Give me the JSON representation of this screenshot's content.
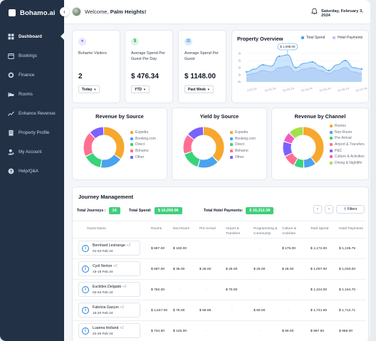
{
  "app": {
    "name": "Bohamo.ai"
  },
  "sidebar": {
    "collapse_icon": "chevron-left-icon",
    "items": [
      {
        "label": "Dashboard",
        "icon": "grid-icon",
        "active": true
      },
      {
        "label": "Bookings",
        "icon": "calendar-icon",
        "active": false
      },
      {
        "label": "Finance",
        "icon": "coin-icon",
        "active": false
      },
      {
        "label": "Rooms",
        "icon": "bed-icon",
        "active": false
      },
      {
        "label": "Enhance Revenue",
        "icon": "chart-up-icon",
        "active": false
      },
      {
        "label": "Property Profile",
        "icon": "building-icon",
        "active": false
      },
      {
        "label": "My Account",
        "icon": "user-cog-icon",
        "active": false
      },
      {
        "label": "Help/Q&A",
        "icon": "help-icon",
        "active": false
      }
    ]
  },
  "header": {
    "welcome_prefix": "Welcome,",
    "user_name": "Palm Heights!",
    "date": "Saturday, February 3, 2024"
  },
  "stats": [
    {
      "label": "Bohamo Visitors",
      "value": "2",
      "filter": "Today",
      "icon": "users-icon",
      "icon_color": "#7b61ff",
      "icon_bg": "#ebe7ff"
    },
    {
      "label": "Average Spend Per Guest Per Day",
      "value": "$ 476.34",
      "filter": "YTD",
      "icon": "money-icon",
      "icon_color": "#1f9d55",
      "icon_bg": "#dcf5e6"
    },
    {
      "label": "Average Spend Per Guest",
      "value": "$ 1148.00",
      "filter": "Past Week",
      "icon": "wallet-icon",
      "icon_color": "#2b7fd8",
      "icon_bg": "#dcebfb"
    }
  ],
  "overview": {
    "title": "Property Overview",
    "legend": [
      {
        "name": "Total Spend",
        "color": "#4aa3f0"
      },
      {
        "name": "Hotel Payments",
        "color": "#b8c7f5"
      }
    ],
    "tooltip": "$ 1,098.00"
  },
  "chart_data": [
    {
      "type": "area",
      "title": "Property Overview",
      "y_ticks": [
        "1k",
        "1k",
        "1k",
        "1k",
        "0k"
      ],
      "x_ticks": [
        "2-01-24",
        "02-02-24",
        "02-03-24",
        "02-04-24",
        "02-05-24",
        "02-06-24",
        "02-07-24"
      ],
      "series": [
        {
          "name": "Total Spend",
          "values": [
            0.35,
            0.45,
            0.6,
            0.55,
            0.9,
            0.95,
            0.5,
            0.65,
            0.7,
            0.55,
            0.4,
            0.6,
            0.75,
            0.5,
            0.45
          ]
        },
        {
          "name": "Hotel Payments",
          "values": [
            0.25,
            0.3,
            0.4,
            0.35,
            0.5,
            0.55,
            0.35,
            0.45,
            0.5,
            0.4,
            0.3,
            0.4,
            0.5,
            0.35,
            0.3
          ]
        }
      ]
    },
    {
      "type": "pie",
      "title": "Revenue by Source",
      "categories": [
        "Expedia",
        "Booking.com",
        "Direct",
        "Bohamo",
        "Other"
      ],
      "values": [
        35,
        18,
        15,
        20,
        12
      ],
      "colors": [
        "#f7a72e",
        "#4aa3f0",
        "#38d47a",
        "#ff6f91",
        "#7b61ff"
      ]
    },
    {
      "type": "pie",
      "title": "Yield by Source",
      "categories": [
        "Expedia",
        "Booking.com",
        "Direct",
        "Bohamo",
        "Other"
      ],
      "values": [
        38,
        17,
        15,
        16,
        14
      ],
      "colors": [
        "#f7a72e",
        "#4aa3f0",
        "#38d47a",
        "#ff6f91",
        "#7b61ff"
      ]
    },
    {
      "type": "pie",
      "title": "Revenue by Channel",
      "categories": [
        "Rooms",
        "Non-Room",
        "Pre-Arrival",
        "Airport & Transfers",
        "P&C",
        "Culture & Activities",
        "Dining & Nightlife"
      ],
      "values": [
        40,
        10,
        8,
        10,
        12,
        8,
        12
      ],
      "colors": [
        "#f7a72e",
        "#4aa3f0",
        "#38d47a",
        "#ff6f91",
        "#7b61ff",
        "#f25cc2",
        "#a3e04a"
      ]
    }
  ],
  "journey": {
    "title": "Journey Management",
    "total_journeys_label": "Total Journeys :",
    "total_journeys": "10",
    "total_spend_label": "Total Spend:",
    "total_spend": "$ 16,059.96",
    "total_hotel_label": "Total Hotel Payments:",
    "total_hotel": "$ 15,312.38",
    "prev": "‹",
    "next": "›",
    "filters": "Filters",
    "columns": [
      "Guest Name",
      "Rooms",
      "Non-Room",
      "Pre-Arrival",
      "Airport & Transfers",
      "Programming & Community",
      "Culture & Activities",
      "Total Spend",
      "Hotel Payments"
    ],
    "rows": [
      {
        "name": "Bernhard Lestrange",
        "extra": "+2",
        "dates": "01-04 Feb 24",
        "cells": [
          "$ 697.00",
          "$ 100.00",
          "-",
          "-",
          "-",
          "$ 175.00",
          "$ 1,172.00",
          "$ 1,136.75"
        ]
      },
      {
        "name": "Cyril Norton",
        "extra": "+2",
        "dates": "15-18 Feb 24",
        "cells": [
          "$ 697.00",
          "$ 35.00",
          "$ 25.00",
          "$ 25.00",
          "$ 25.00",
          "$ 25.00",
          "$ 1,057.00",
          "$ 1,033.00"
        ]
      },
      {
        "name": "Euclides Delgado",
        "extra": "+2",
        "dates": "02-04 Feb 24",
        "cells": [
          "$ 762.00",
          "-",
          "-",
          "$ 70.00",
          "-",
          "-",
          "$ 1,224.00",
          "$ 1,154.70"
        ]
      },
      {
        "name": "Fabricia Garçon",
        "extra": "+2",
        "dates": "15-20 Feb 24",
        "cells": [
          "$ 1,547.00",
          "$ 75.00",
          "$ 59.95",
          "-",
          "$ 60.00",
          "-",
          "$ 1,741.95",
          "$ 1,712.71"
        ]
      },
      {
        "name": "Luanna Holland",
        "extra": "+2",
        "dates": "22-26 Feb 24",
        "cells": [
          "$ 734.50",
          "$ 125.00",
          "-",
          "-",
          "-",
          "$ 90.00",
          "$ 997.50",
          "$ 958.00"
        ]
      }
    ]
  }
}
